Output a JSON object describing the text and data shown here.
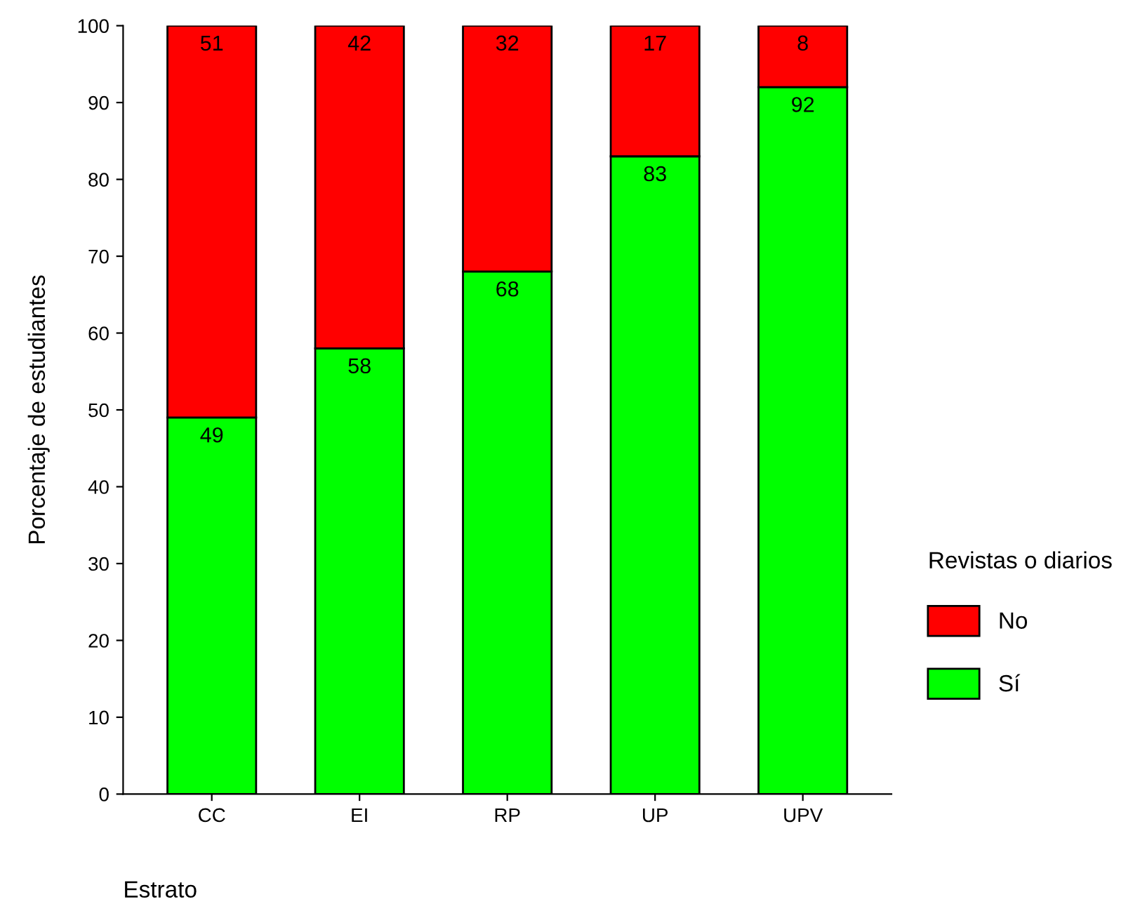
{
  "chart_data": {
    "type": "bar",
    "stacked": true,
    "ylabel": "Porcentaje de estudiantes",
    "xlabel": "Estrato",
    "legend_title": "Revistas o diarios",
    "categories": [
      "CC",
      "EI",
      "RP",
      "UP",
      "UPV"
    ],
    "series": [
      {
        "name": "Sí",
        "color": "#00ff00",
        "values": [
          49,
          58,
          68,
          83,
          92
        ]
      },
      {
        "name": "No",
        "color": "#ff0000",
        "values": [
          51,
          42,
          32,
          17,
          8
        ]
      }
    ],
    "ylim": [
      0,
      100
    ],
    "yticks": [
      0,
      10,
      20,
      30,
      40,
      50,
      60,
      70,
      80,
      90,
      100
    ],
    "grid": false,
    "legend": "right",
    "data_labels": true
  }
}
